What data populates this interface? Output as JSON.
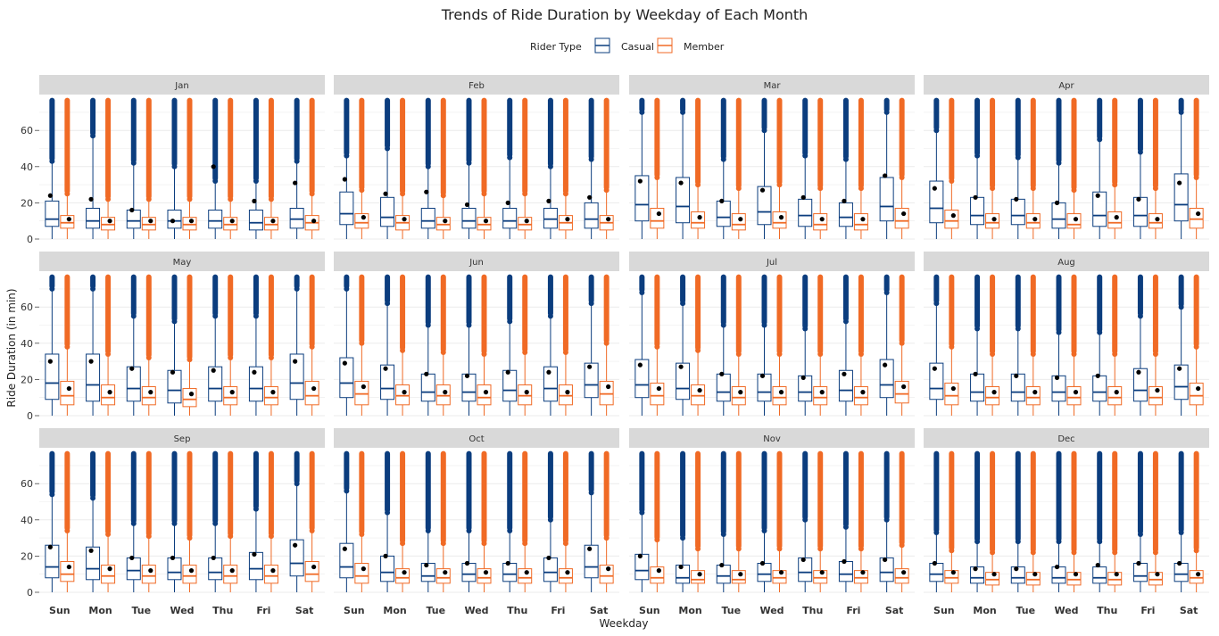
{
  "chart_data": {
    "type": "boxplot",
    "title": "Trends of Ride Duration by Weekday of Each Month",
    "xlabel": "Weekday",
    "ylabel": "Ride Duration (in min)",
    "legend": {
      "title": "Rider Type",
      "placement": "top"
    },
    "series": [
      {
        "name": "Casual",
        "color": "#0b3d7e"
      },
      {
        "name": "Member",
        "color": "#f06a25"
      }
    ],
    "categories": [
      "Sun",
      "Mon",
      "Tue",
      "Wed",
      "Thu",
      "Fri",
      "Sat"
    ],
    "y_ticks": [
      0,
      20,
      40,
      60
    ],
    "ylim": [
      0,
      78
    ],
    "facets": [
      {
        "label": "Jan",
        "casual": {
          "q1": [
            7,
            6,
            6,
            6,
            6,
            5,
            6
          ],
          "median": [
            11,
            10,
            10,
            10,
            10,
            9,
            11
          ],
          "q3": [
            21,
            17,
            16,
            16,
            16,
            16,
            17
          ],
          "mean": [
            24,
            22,
            16,
            10,
            40,
            21,
            31
          ],
          "min_outlier_start": [
            43,
            57,
            42,
            40,
            32,
            32,
            43
          ]
        },
        "member": {
          "q1": [
            6,
            5,
            5,
            5,
            5,
            5,
            5
          ],
          "median": [
            9,
            8,
            8,
            8,
            8,
            8,
            9
          ],
          "q3": [
            13,
            12,
            12,
            12,
            12,
            12,
            13
          ],
          "mean": [
            11,
            10,
            10,
            10,
            10,
            10,
            10
          ],
          "min_outlier_start": [
            25,
            22,
            22,
            22,
            22,
            22,
            25
          ]
        }
      },
      {
        "label": "Feb",
        "casual": {
          "q1": [
            8,
            7,
            6,
            6,
            6,
            6,
            6
          ],
          "median": [
            14,
            12,
            10,
            10,
            10,
            11,
            11
          ],
          "q3": [
            26,
            23,
            17,
            17,
            17,
            17,
            20
          ],
          "mean": [
            33,
            25,
            26,
            19,
            20,
            21,
            23
          ],
          "min_outlier_start": [
            46,
            50,
            40,
            42,
            45,
            40,
            44
          ]
        },
        "member": {
          "q1": [
            6,
            5,
            5,
            5,
            5,
            5,
            5
          ],
          "median": [
            9,
            9,
            8,
            8,
            8,
            9,
            9
          ],
          "q3": [
            14,
            13,
            12,
            12,
            12,
            13,
            13
          ],
          "mean": [
            12,
            11,
            10,
            10,
            10,
            11,
            11
          ],
          "min_outlier_start": [
            27,
            25,
            24,
            25,
            25,
            25,
            27
          ]
        }
      },
      {
        "label": "Mar",
        "casual": {
          "q1": [
            10,
            9,
            7,
            8,
            7,
            7,
            10
          ],
          "median": [
            19,
            18,
            12,
            15,
            13,
            12,
            18
          ],
          "q3": [
            35,
            34,
            21,
            29,
            22,
            20,
            34
          ],
          "mean": [
            32,
            31,
            21,
            27,
            23,
            21,
            35
          ],
          "min_outlier_start": [
            70,
            70,
            44,
            60,
            46,
            44,
            70
          ]
        },
        "member": {
          "q1": [
            6,
            6,
            5,
            6,
            5,
            5,
            6
          ],
          "median": [
            10,
            9,
            8,
            9,
            8,
            8,
            10
          ],
          "q3": [
            17,
            15,
            14,
            15,
            14,
            14,
            17
          ],
          "mean": [
            14,
            12,
            11,
            12,
            11,
            11,
            14
          ],
          "min_outlier_start": [
            34,
            30,
            28,
            30,
            28,
            28,
            34
          ]
        }
      },
      {
        "label": "Apr",
        "casual": {
          "q1": [
            9,
            8,
            8,
            6,
            7,
            7,
            10
          ],
          "median": [
            17,
            13,
            13,
            11,
            13,
            13,
            19
          ],
          "q3": [
            32,
            23,
            22,
            20,
            26,
            23,
            36
          ],
          "mean": [
            28,
            23,
            22,
            20,
            24,
            22,
            31
          ],
          "min_outlier_start": [
            60,
            46,
            45,
            42,
            55,
            48,
            70
          ]
        },
        "member": {
          "q1": [
            6,
            6,
            6,
            6,
            6,
            6,
            6
          ],
          "median": [
            10,
            9,
            9,
            8,
            9,
            9,
            11
          ],
          "q3": [
            16,
            14,
            14,
            14,
            15,
            14,
            17
          ],
          "mean": [
            13,
            11,
            11,
            11,
            12,
            11,
            14
          ],
          "min_outlier_start": [
            32,
            28,
            28,
            27,
            30,
            28,
            34
          ]
        }
      },
      {
        "label": "May",
        "casual": {
          "q1": [
            9,
            8,
            8,
            7,
            8,
            8,
            9
          ],
          "median": [
            18,
            17,
            15,
            14,
            15,
            15,
            18
          ],
          "q3": [
            34,
            34,
            27,
            25,
            27,
            27,
            34
          ],
          "mean": [
            30,
            30,
            26,
            24,
            25,
            24,
            30
          ],
          "min_outlier_start": [
            70,
            70,
            55,
            52,
            55,
            55,
            70
          ]
        },
        "member": {
          "q1": [
            6,
            6,
            6,
            5,
            6,
            6,
            6
          ],
          "median": [
            11,
            10,
            10,
            9,
            10,
            10,
            11
          ],
          "q3": [
            19,
            17,
            16,
            15,
            16,
            16,
            19
          ],
          "mean": [
            15,
            13,
            13,
            12,
            13,
            13,
            15
          ],
          "min_outlier_start": [
            38,
            34,
            32,
            31,
            32,
            32,
            38
          ]
        }
      },
      {
        "label": "Jun",
        "casual": {
          "q1": [
            10,
            9,
            8,
            8,
            8,
            8,
            10
          ],
          "median": [
            18,
            15,
            13,
            13,
            14,
            15,
            17
          ],
          "q3": [
            32,
            28,
            23,
            23,
            25,
            27,
            29
          ],
          "mean": [
            29,
            26,
            23,
            22,
            24,
            24,
            27
          ],
          "min_outlier_start": [
            70,
            62,
            50,
            50,
            52,
            55,
            62
          ]
        },
        "member": {
          "q1": [
            6,
            6,
            6,
            6,
            6,
            6,
            6
          ],
          "median": [
            12,
            11,
            11,
            10,
            11,
            11,
            12
          ],
          "q3": [
            19,
            17,
            17,
            17,
            17,
            17,
            19
          ],
          "mean": [
            16,
            13,
            13,
            13,
            13,
            13,
            16
          ],
          "min_outlier_start": [
            40,
            36,
            35,
            34,
            35,
            35,
            40
          ]
        }
      },
      {
        "label": "Jul",
        "casual": {
          "q1": [
            10,
            9,
            8,
            8,
            8,
            8,
            10
          ],
          "median": [
            17,
            15,
            13,
            13,
            13,
            14,
            17
          ],
          "q3": [
            31,
            29,
            23,
            23,
            22,
            25,
            31
          ],
          "mean": [
            28,
            27,
            23,
            22,
            21,
            23,
            28
          ],
          "min_outlier_start": [
            68,
            62,
            50,
            50,
            48,
            52,
            68
          ]
        },
        "member": {
          "q1": [
            6,
            6,
            6,
            6,
            6,
            6,
            7
          ],
          "median": [
            11,
            11,
            10,
            10,
            10,
            10,
            12
          ],
          "q3": [
            18,
            17,
            16,
            16,
            16,
            16,
            19
          ],
          "mean": [
            15,
            14,
            13,
            13,
            13,
            13,
            16
          ],
          "min_outlier_start": [
            38,
            36,
            34,
            34,
            34,
            34,
            40
          ]
        }
      },
      {
        "label": "Aug",
        "casual": {
          "q1": [
            9,
            8,
            8,
            8,
            8,
            8,
            9
          ],
          "median": [
            15,
            13,
            13,
            13,
            13,
            14,
            16
          ],
          "q3": [
            29,
            23,
            23,
            22,
            22,
            26,
            28
          ],
          "mean": [
            26,
            23,
            22,
            21,
            22,
            24,
            26
          ],
          "min_outlier_start": [
            62,
            48,
            48,
            46,
            46,
            55,
            60
          ]
        },
        "member": {
          "q1": [
            6,
            6,
            6,
            6,
            6,
            6,
            6
          ],
          "median": [
            11,
            10,
            10,
            10,
            10,
            10,
            11
          ],
          "q3": [
            18,
            16,
            16,
            16,
            16,
            16,
            18
          ],
          "mean": [
            15,
            13,
            13,
            13,
            13,
            14,
            15
          ],
          "min_outlier_start": [
            38,
            34,
            34,
            34,
            34,
            34,
            38
          ]
        }
      },
      {
        "label": "Sep",
        "casual": {
          "q1": [
            8,
            7,
            7,
            7,
            7,
            7,
            9
          ],
          "median": [
            14,
            13,
            12,
            11,
            11,
            13,
            16
          ],
          "q3": [
            26,
            25,
            19,
            19,
            19,
            22,
            29
          ],
          "mean": [
            25,
            23,
            19,
            19,
            19,
            21,
            26
          ],
          "min_outlier_start": [
            54,
            52,
            38,
            38,
            38,
            46,
            60
          ]
        },
        "member": {
          "q1": [
            6,
            5,
            5,
            5,
            5,
            5,
            6
          ],
          "median": [
            10,
            9,
            9,
            9,
            9,
            9,
            10
          ],
          "q3": [
            17,
            15,
            15,
            15,
            15,
            15,
            17
          ],
          "mean": [
            14,
            13,
            12,
            12,
            12,
            12,
            14
          ],
          "min_outlier_start": [
            34,
            32,
            31,
            30,
            31,
            31,
            34
          ]
        }
      },
      {
        "label": "Oct",
        "casual": {
          "q1": [
            8,
            6,
            6,
            6,
            6,
            6,
            8
          ],
          "median": [
            14,
            11,
            9,
            10,
            10,
            11,
            14
          ],
          "q3": [
            27,
            20,
            16,
            16,
            16,
            19,
            26
          ],
          "mean": [
            24,
            20,
            15,
            16,
            16,
            19,
            24
          ],
          "min_outlier_start": [
            56,
            44,
            34,
            34,
            34,
            40,
            55
          ]
        },
        "member": {
          "q1": [
            5,
            5,
            5,
            5,
            5,
            5,
            5
          ],
          "median": [
            9,
            8,
            8,
            8,
            8,
            8,
            9
          ],
          "q3": [
            16,
            13,
            13,
            13,
            13,
            13,
            15
          ],
          "mean": [
            13,
            11,
            11,
            11,
            11,
            11,
            13
          ],
          "min_outlier_start": [
            32,
            27,
            27,
            27,
            27,
            27,
            30
          ]
        }
      },
      {
        "label": "Nov",
        "casual": {
          "q1": [
            7,
            5,
            5,
            6,
            6,
            6,
            6
          ],
          "median": [
            12,
            8,
            9,
            10,
            11,
            10,
            11
          ],
          "q3": [
            21,
            15,
            15,
            16,
            19,
            17,
            19
          ],
          "mean": [
            20,
            14,
            15,
            16,
            18,
            17,
            18
          ],
          "min_outlier_start": [
            44,
            30,
            32,
            34,
            40,
            36,
            40
          ]
        },
        "member": {
          "q1": [
            5,
            5,
            5,
            5,
            5,
            5,
            5
          ],
          "median": [
            8,
            7,
            7,
            8,
            8,
            8,
            8
          ],
          "q3": [
            14,
            12,
            12,
            12,
            12,
            12,
            13
          ],
          "mean": [
            12,
            10,
            10,
            11,
            11,
            11,
            11
          ],
          "min_outlier_start": [
            29,
            24,
            24,
            24,
            24,
            24,
            26
          ]
        }
      },
      {
        "label": "Dec",
        "casual": {
          "q1": [
            6,
            5,
            5,
            5,
            5,
            6,
            6
          ],
          "median": [
            10,
            8,
            8,
            8,
            8,
            9,
            10
          ],
          "q3": [
            16,
            14,
            14,
            14,
            14,
            16,
            16
          ],
          "mean": [
            16,
            13,
            13,
            14,
            15,
            16,
            16
          ],
          "min_outlier_start": [
            33,
            28,
            28,
            28,
            28,
            32,
            33
          ]
        },
        "member": {
          "q1": [
            5,
            4,
            4,
            4,
            4,
            4,
            5
          ],
          "median": [
            8,
            7,
            7,
            7,
            7,
            7,
            8
          ],
          "q3": [
            12,
            11,
            11,
            11,
            11,
            11,
            12
          ],
          "mean": [
            11,
            10,
            10,
            10,
            10,
            10,
            10
          ],
          "min_outlier_start": [
            23,
            22,
            22,
            22,
            22,
            22,
            23
          ]
        }
      }
    ]
  }
}
